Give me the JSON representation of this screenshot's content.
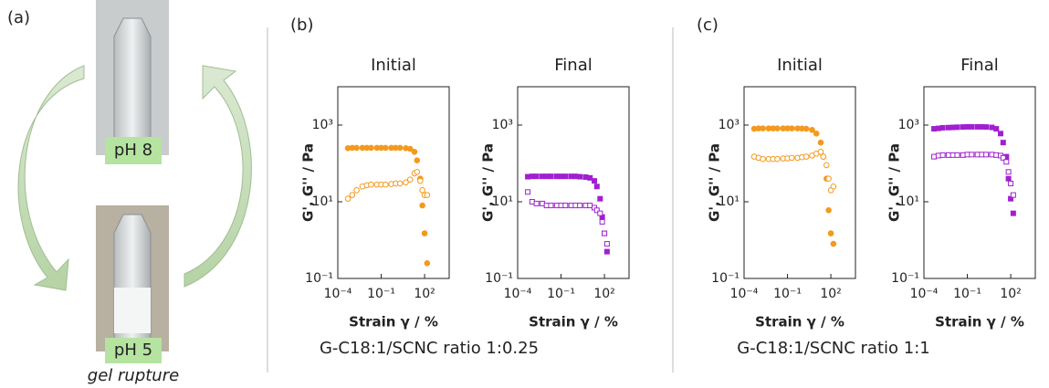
{
  "figure": {
    "panel_a": {
      "label": "(a)",
      "top_tag": "pH 8",
      "bottom_tag": "pH 5",
      "bottom_caption": "gel rupture"
    },
    "panel_b": {
      "label": "(b)",
      "caption": "G-C18:1/SCNC ratio 1:0.25"
    },
    "panel_c": {
      "label": "(c)",
      "caption": "G-C18:1/SCNC ratio 1:1"
    }
  },
  "chart_data": [
    {
      "type": "scatter",
      "title": "Initial",
      "xlabel": "Strain γ / %",
      "ylabel": "G', G'' / Pa",
      "log_x": true,
      "log_y": true,
      "xlim": [
        0.0001,
        5000
      ],
      "ylim": [
        0.1,
        10000
      ],
      "xticks": [
        {
          "value": 0.0001,
          "label": "10⁻⁴"
        },
        {
          "value": 0.1,
          "label": "10⁻¹"
        },
        {
          "value": 100,
          "label": "10²"
        }
      ],
      "yticks": [
        {
          "value": 0.1,
          "label": "10⁻¹"
        },
        {
          "value": 10,
          "label": "10¹"
        },
        {
          "value": 1000,
          "label": "10³"
        }
      ],
      "x": [
        0.0005,
        0.001,
        0.002,
        0.005,
        0.01,
        0.02,
        0.05,
        0.1,
        0.2,
        0.5,
        1,
        2,
        5,
        10,
        20,
        30,
        50,
        70,
        100,
        150
      ],
      "series": [
        {
          "color": "#f39a1e",
          "marker": "circle",
          "filled": true,
          "values": [
            250,
            255,
            255,
            255,
            255,
            255,
            255,
            255,
            255,
            255,
            255,
            255,
            250,
            240,
            200,
            120,
            40,
            8,
            1.5,
            0.25
          ]
        },
        {
          "color": "#f39a1e",
          "marker": "circle",
          "filled": false,
          "values": [
            12,
            15,
            20,
            25,
            27,
            28,
            28,
            28,
            28,
            29,
            30,
            30,
            32,
            38,
            55,
            60,
            35,
            20,
            15,
            15
          ]
        }
      ]
    },
    {
      "type": "scatter",
      "title": "Final",
      "xlabel": "Strain γ / %",
      "ylabel": "G', G'' / Pa",
      "log_x": true,
      "log_y": true,
      "xlim": [
        0.0001,
        5000
      ],
      "ylim": [
        0.1,
        10000
      ],
      "xticks": [
        {
          "value": 0.0001,
          "label": "10⁻⁴"
        },
        {
          "value": 0.1,
          "label": "10⁻¹"
        },
        {
          "value": 100,
          "label": "10²"
        }
      ],
      "yticks": [
        {
          "value": 0.1,
          "label": "10⁻¹"
        },
        {
          "value": 10,
          "label": "10¹"
        },
        {
          "value": 1000,
          "label": "10³"
        }
      ],
      "x": [
        0.0005,
        0.001,
        0.002,
        0.005,
        0.01,
        0.02,
        0.05,
        0.1,
        0.2,
        0.5,
        1,
        2,
        5,
        10,
        20,
        30,
        50,
        70,
        100,
        150
      ],
      "series": [
        {
          "color": "#a020d0",
          "marker": "square",
          "filled": true,
          "values": [
            45,
            46,
            46,
            46,
            46,
            46,
            46,
            46,
            46,
            46,
            46,
            45,
            44,
            42,
            35,
            25,
            12,
            4,
            1.5,
            0.5
          ]
        },
        {
          "color": "#a020d0",
          "marker": "square",
          "filled": false,
          "values": [
            18,
            10,
            9,
            9,
            8,
            8,
            8,
            8,
            8,
            8,
            8,
            8,
            8,
            8,
            7,
            6,
            5,
            3,
            1.5,
            0.8
          ]
        }
      ]
    },
    {
      "type": "scatter",
      "title": "Initial",
      "xlabel": "Strain γ / %",
      "ylabel": "G', G'' / Pa",
      "log_x": true,
      "log_y": true,
      "xlim": [
        0.0001,
        5000
      ],
      "ylim": [
        0.1,
        10000
      ],
      "xticks": [
        {
          "value": 0.0001,
          "label": "10⁻⁴"
        },
        {
          "value": 0.1,
          "label": "10⁻¹"
        },
        {
          "value": 100,
          "label": "10²"
        }
      ],
      "yticks": [
        {
          "value": 0.1,
          "label": "10⁻¹"
        },
        {
          "value": 10,
          "label": "10¹"
        },
        {
          "value": 1000,
          "label": "10³"
        }
      ],
      "x": [
        0.0005,
        0.001,
        0.002,
        0.005,
        0.01,
        0.02,
        0.05,
        0.1,
        0.2,
        0.5,
        1,
        2,
        5,
        10,
        20,
        30,
        50,
        70,
        100,
        150
      ],
      "series": [
        {
          "color": "#f39a1e",
          "marker": "circle",
          "filled": true,
          "values": [
            800,
            820,
            820,
            820,
            820,
            820,
            820,
            820,
            820,
            820,
            810,
            800,
            750,
            600,
            350,
            150,
            40,
            6,
            1.5,
            0.8
          ]
        },
        {
          "color": "#f39a1e",
          "marker": "circle",
          "filled": false,
          "values": [
            150,
            140,
            130,
            130,
            130,
            130,
            135,
            135,
            140,
            140,
            145,
            150,
            160,
            180,
            200,
            150,
            90,
            40,
            20,
            25
          ]
        }
      ]
    },
    {
      "type": "scatter",
      "title": "Final",
      "xlabel": "Strain γ / %",
      "ylabel": "G', G'' / Pa",
      "log_x": true,
      "log_y": true,
      "xlim": [
        0.0001,
        5000
      ],
      "ylim": [
        0.1,
        10000
      ],
      "xticks": [
        {
          "value": 0.0001,
          "label": "10⁻⁴"
        },
        {
          "value": 0.1,
          "label": "10⁻¹"
        },
        {
          "value": 100,
          "label": "10²"
        }
      ],
      "yticks": [
        {
          "value": 0.1,
          "label": "10⁻¹"
        },
        {
          "value": 10,
          "label": "10¹"
        },
        {
          "value": 1000,
          "label": "10³"
        }
      ],
      "x": [
        0.0005,
        0.001,
        0.002,
        0.005,
        0.01,
        0.02,
        0.05,
        0.1,
        0.2,
        0.5,
        1,
        2,
        5,
        10,
        20,
        30,
        50,
        70,
        100,
        150
      ],
      "series": [
        {
          "color": "#a020d0",
          "marker": "square",
          "filled": true,
          "values": [
            800,
            820,
            850,
            860,
            870,
            880,
            890,
            900,
            900,
            900,
            900,
            890,
            870,
            800,
            600,
            350,
            150,
            40,
            12,
            5
          ]
        },
        {
          "color": "#a020d0",
          "marker": "square",
          "filled": false,
          "values": [
            150,
            160,
            165,
            165,
            165,
            165,
            165,
            170,
            170,
            170,
            170,
            170,
            170,
            165,
            160,
            140,
            110,
            60,
            30,
            15
          ]
        }
      ]
    }
  ]
}
